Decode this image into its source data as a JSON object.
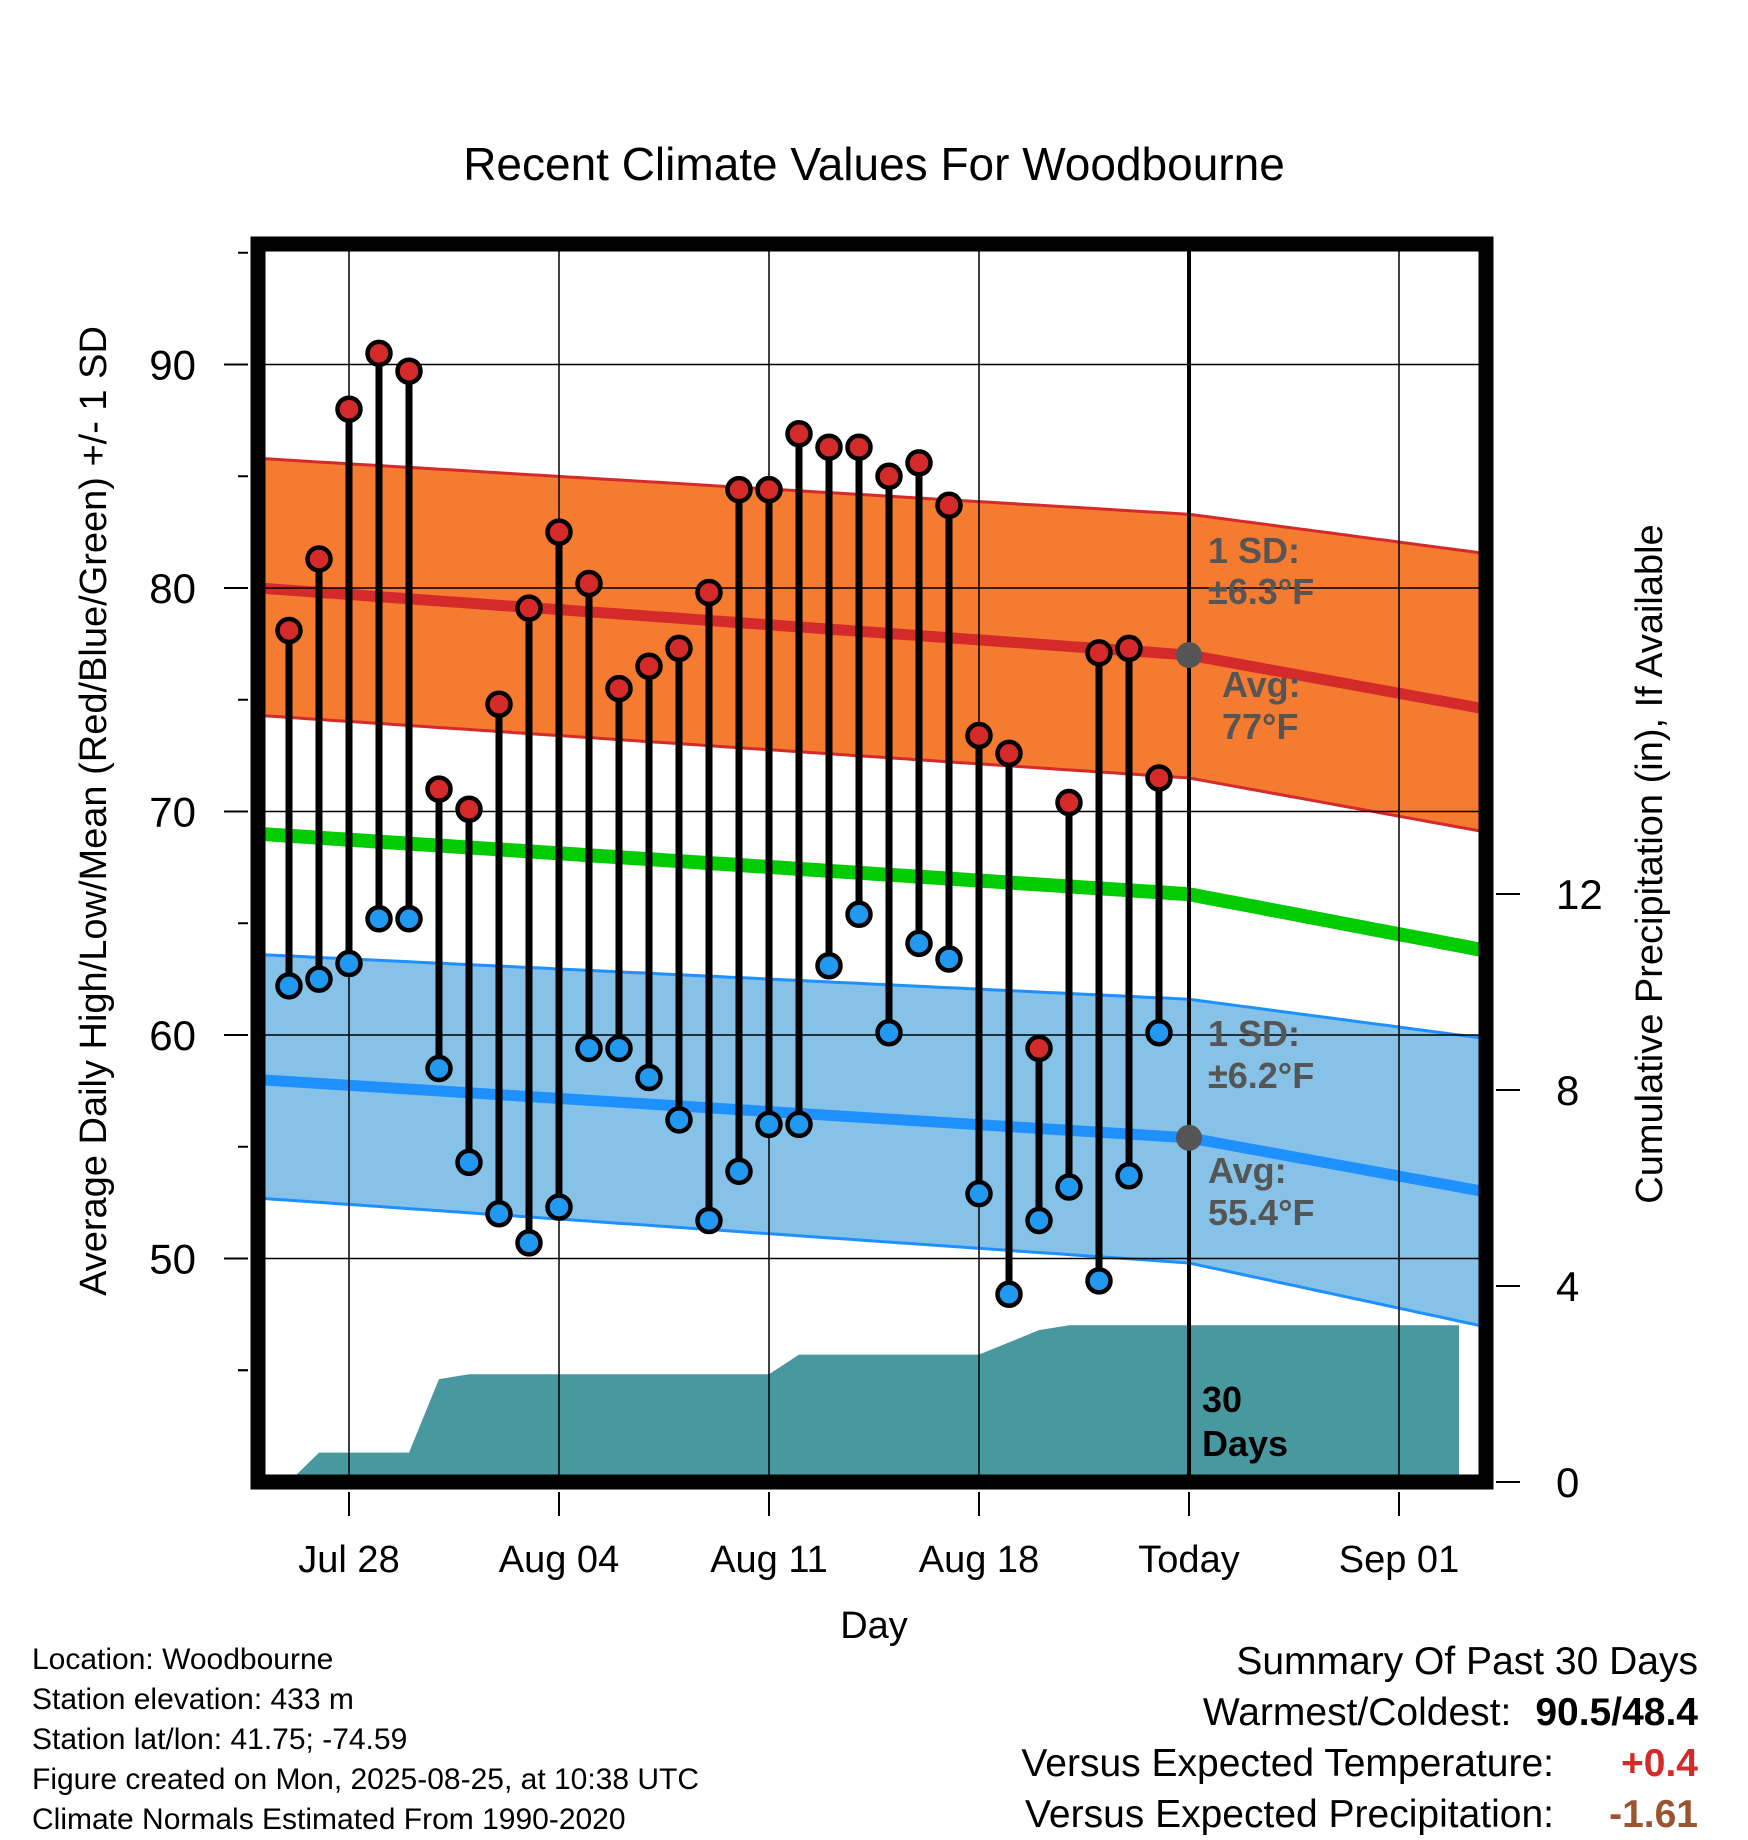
{
  "chart_data": {
    "type": "line",
    "title": "Recent Climate Values For Woodbourne",
    "xlabel": "Day",
    "ylabel_left": "Average Daily High/Low/Mean (Red/Blue/Green) +/- 1 SD",
    "ylabel_right": "Cumulative Precipitation (in), If Available",
    "x_tick_labels": [
      "Jul 28",
      "Aug 04",
      "Aug 11",
      "Aug 18",
      "Today",
      "Sep 01"
    ],
    "y_left_ticks": [
      50,
      60,
      70,
      80,
      90
    ],
    "y_right_ticks": [
      0,
      4,
      8,
      12
    ],
    "ylim_left": [
      40,
      95
    ],
    "ylim_right": [
      0,
      24
    ],
    "grid": true,
    "days": [
      "Jul 26",
      "Jul 27",
      "Jul 28",
      "Jul 29",
      "Jul 30",
      "Jul 31",
      "Aug 01",
      "Aug 02",
      "Aug 03",
      "Aug 04",
      "Aug 05",
      "Aug 06",
      "Aug 07",
      "Aug 08",
      "Aug 09",
      "Aug 10",
      "Aug 11",
      "Aug 12",
      "Aug 13",
      "Aug 14",
      "Aug 15",
      "Aug 16",
      "Aug 17",
      "Aug 18",
      "Aug 19",
      "Aug 20",
      "Aug 21",
      "Aug 22",
      "Aug 23",
      "Aug 24"
    ],
    "daily_high": [
      78.1,
      81.3,
      88.0,
      90.5,
      89.7,
      71.0,
      70.1,
      74.8,
      79.1,
      82.5,
      80.2,
      75.5,
      76.5,
      77.3,
      79.8,
      84.4,
      84.4,
      86.9,
      86.3,
      86.3,
      85.0,
      85.6,
      83.7,
      73.4,
      72.6,
      59.4,
      70.4,
      77.1,
      77.3,
      71.5
    ],
    "daily_low": [
      62.2,
      62.5,
      63.2,
      65.2,
      65.2,
      58.5,
      54.3,
      52.0,
      50.7,
      52.3,
      59.4,
      59.4,
      58.1,
      56.2,
      51.7,
      53.9,
      56.0,
      56.0,
      63.1,
      65.4,
      60.1,
      64.1,
      63.4,
      52.9,
      48.4,
      51.7,
      53.2,
      49.0,
      53.7,
      60.1
    ],
    "normal_dates": [
      "Jul 25",
      "Aug 25",
      "Sep 03"
    ],
    "normal_high": [
      80.0,
      77.0,
      74.8
    ],
    "normal_high_plus_sd": [
      85.8,
      83.3,
      81.7
    ],
    "normal_high_minus_sd": [
      74.3,
      71.5,
      69.3
    ],
    "normal_low": [
      58.0,
      55.4,
      53.2
    ],
    "normal_low_plus_sd": [
      63.6,
      61.6,
      60.0
    ],
    "normal_low_minus_sd": [
      52.7,
      49.8,
      47.2
    ],
    "normal_mean": [
      69.0,
      66.3,
      64.0
    ],
    "cumulative_precip_days": [
      "Jul 26",
      "Jul 27",
      "Jul 29",
      "Jul 30",
      "Jul 31",
      "Aug 01",
      "Aug 11",
      "Aug 12",
      "Aug 17",
      "Aug 18",
      "Aug 20",
      "Aug 21",
      "Sep 03"
    ],
    "cumulative_precip": [
      0.0,
      0.6,
      0.6,
      0.6,
      2.1,
      2.2,
      2.2,
      2.6,
      2.6,
      2.6,
      3.1,
      3.2,
      3.2
    ],
    "annotations": {
      "high_sd": "1 SD:",
      "high_sd_value": "±6.3°F",
      "high_avg": "Avg:",
      "high_avg_value": "77°F",
      "low_sd": "1 SD:",
      "low_sd_value": "±6.2°F",
      "low_avg": "Avg:",
      "low_avg_value": "55.4°F",
      "days_count": "30",
      "days_word": "Days"
    },
    "colors": {
      "high_band": "#f57b30",
      "high_line": "#d42a2a",
      "low_band": "#86c2e7",
      "low_line": "#1e90ff",
      "mean_line": "#00cc00",
      "precip": "#48989f",
      "high_marker": "#d42a2a",
      "low_marker": "#2299f0",
      "stem": "#000000",
      "annotation_text": "#555555",
      "today_marker": "#555555"
    }
  },
  "location": {
    "line1": "Location: Woodbourne",
    "line2": "Station elevation: 433 m",
    "line3": "Station lat/lon: 41.75; -74.59",
    "line4": "Figure created on Mon, 2025-08-25, at 10:38 UTC",
    "line5": "Climate Normals Estimated From 1990-2020"
  },
  "summary": {
    "title": "Summary Of Past 30 Days",
    "warmest_label": "Warmest/Coldest:",
    "warmest_value": "90.5/48.4",
    "temp_label": "Versus Expected Temperature:",
    "temp_value": "+0.4",
    "precip_label": "Versus Expected Precipitation:",
    "precip_value": "-1.61"
  }
}
